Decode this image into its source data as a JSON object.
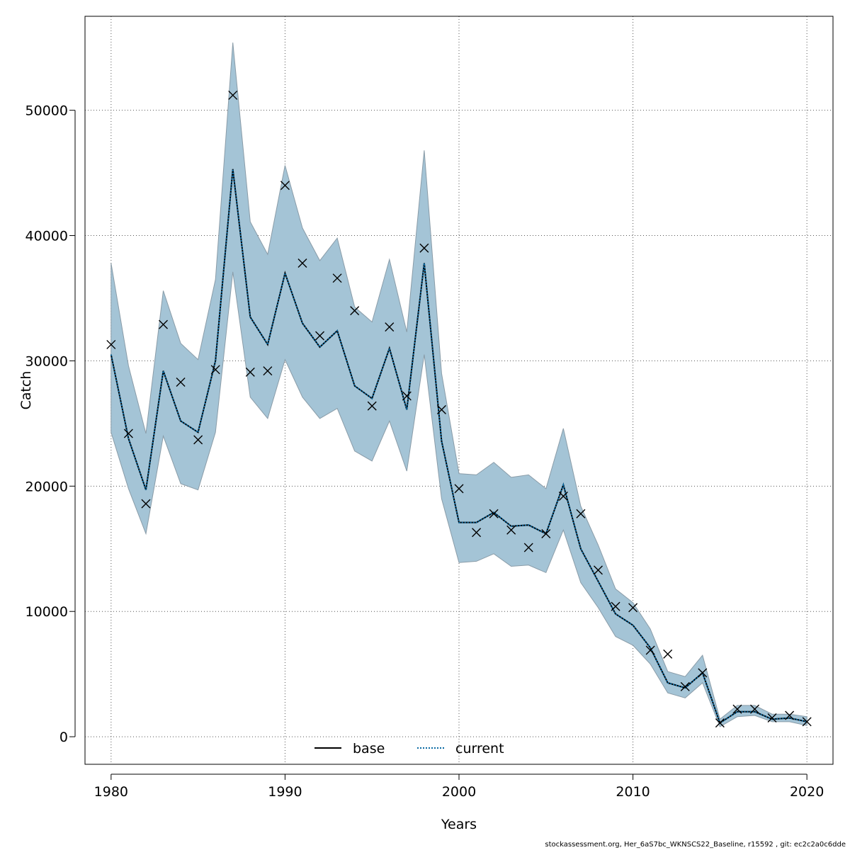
{
  "chart_data": {
    "type": "line",
    "xlabel": "Years",
    "ylabel": "Catch",
    "xlim": [
      1978.5,
      2021.5
    ],
    "ylim": [
      -2200,
      57500
    ],
    "x_ticks": [
      1980,
      1990,
      2000,
      2010,
      2020
    ],
    "y_ticks": [
      0,
      10000,
      20000,
      30000,
      40000,
      50000
    ],
    "grid": true,
    "legend_position": "bottom-center",
    "years": [
      1980,
      1981,
      1982,
      1983,
      1984,
      1985,
      1986,
      1987,
      1988,
      1989,
      1990,
      1991,
      1992,
      1993,
      1994,
      1995,
      1996,
      1997,
      1998,
      1999,
      2000,
      2001,
      2002,
      2003,
      2004,
      2005,
      2006,
      2007,
      2008,
      2009,
      2010,
      2011,
      2012,
      2013,
      2014,
      2015,
      2016,
      2017,
      2018,
      2019,
      2020
    ],
    "band": {
      "color": "#a4c4d6",
      "upper": [
        37800,
        29600,
        24200,
        35600,
        31400,
        30100,
        36500,
        55400,
        41100,
        38500,
        45600,
        40600,
        38000,
        39800,
        34300,
        33100,
        38100,
        32300,
        46800,
        29000,
        21000,
        20900,
        21900,
        20700,
        20900,
        19800,
        24600,
        18400,
        15300,
        11800,
        10700,
        8600,
        5200,
        4800,
        6500,
        1400,
        2500,
        2500,
        1800,
        1800,
        1600
      ],
      "lower": [
        24300,
        19800,
        16200,
        24000,
        20200,
        19700,
        24300,
        37100,
        27100,
        25400,
        30100,
        27100,
        25400,
        26200,
        22800,
        22000,
        25200,
        21200,
        30500,
        19000,
        13900,
        14000,
        14600,
        13600,
        13700,
        13100,
        16500,
        12300,
        10300,
        8000,
        7300,
        5800,
        3500,
        3100,
        4300,
        800,
        1600,
        1700,
        1200,
        1200,
        900
      ]
    },
    "series": [
      {
        "name": "base",
        "color": "#000000",
        "dash": "solid",
        "values": [
          30500,
          23800,
          19700,
          29200,
          25200,
          24300,
          30000,
          45300,
          33500,
          31300,
          37000,
          33000,
          31100,
          32400,
          28000,
          27000,
          31000,
          26100,
          37800,
          23600,
          17100,
          17100,
          17900,
          16800,
          16900,
          16200,
          20100,
          15000,
          12400,
          9800,
          8900,
          7100,
          4300,
          3900,
          5100,
          1100,
          2000,
          2000,
          1400,
          1500,
          1200
        ]
      },
      {
        "name": "current",
        "color": "#0b6aa3",
        "dash": "dotted",
        "values": [
          30500,
          23800,
          19700,
          29200,
          25200,
          24300,
          30000,
          45300,
          33500,
          31300,
          37000,
          33000,
          31100,
          32400,
          28000,
          27000,
          31000,
          26100,
          37800,
          23600,
          17100,
          17100,
          17900,
          16800,
          16900,
          16200,
          20100,
          15000,
          12400,
          9800,
          8900,
          7100,
          4300,
          3900,
          5100,
          1100,
          2000,
          2000,
          1400,
          1500,
          1200
        ]
      }
    ],
    "observed": {
      "marker": "x",
      "values": [
        31300,
        24200,
        18600,
        32900,
        28300,
        23700,
        29300,
        51200,
        29100,
        29200,
        44000,
        37800,
        32000,
        36600,
        34000,
        26400,
        32700,
        27200,
        39000,
        26100,
        19800,
        16300,
        17800,
        16500,
        15100,
        16200,
        19200,
        17800,
        13300,
        10400,
        10300,
        6900,
        6600,
        4000,
        5100,
        1100,
        2200,
        2200,
        1500,
        1700,
        1200
      ]
    }
  },
  "footer": "stockassessment.org, Her_6aS7bc_WKNSCS22_Baseline, r15592 , git: ec2c2a0c6dde"
}
